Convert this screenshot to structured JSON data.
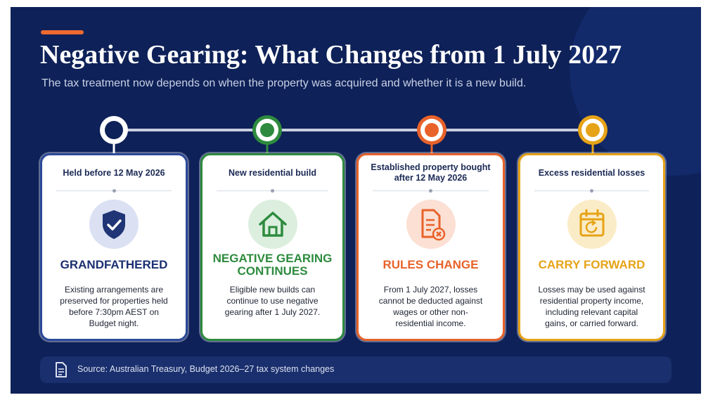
{
  "header": {
    "title": "Negative Gearing: What Changes from 1 July 2027",
    "subtitle": "The tax treatment now depends on when the property was acquired and whether it is a new build."
  },
  "cards": [
    {
      "heading": "Held before 12 May 2026",
      "label": "GRANDFATHERED",
      "description": "Existing arrangements are preserved for properties held before 7:30pm AEST on Budget night."
    },
    {
      "heading": "New residential build",
      "label": "NEGATIVE GEARING CONTINUES",
      "description": "Eligible new builds can continue to use negative gearing after 1 July 2027."
    },
    {
      "heading": "Established property bought after 12 May 2026",
      "label": "RULES CHANGE",
      "description": "From 1 July 2027, losses cannot be deducted against wages or other non-residential income."
    },
    {
      "heading": "Excess residential losses",
      "label": "CARRY FORWARD",
      "description": "Losses may be used against residential property income, including relevant capital gains, or carried forward."
    }
  ],
  "source": "Source: Australian Treasury, Budget 2026–27 tax system changes"
}
